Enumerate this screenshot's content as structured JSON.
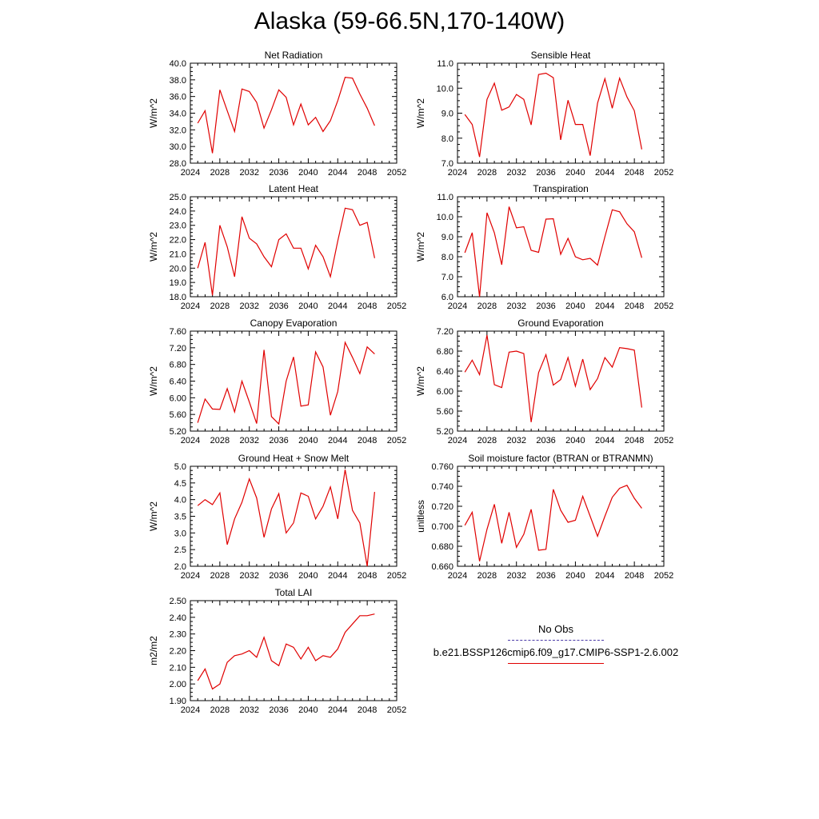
{
  "title": "Alaska (59-66.5N,170-140W)",
  "colors": {
    "model": "#e00000",
    "obs": "#4a3aa8",
    "axis": "#000000"
  },
  "legend": {
    "obs_label": "No Obs",
    "model_label": "b.e21.BSSP126cmip6.f09_g17.CMIP6-SSP1-2.6.002"
  },
  "chart_data": [
    {
      "type": "line",
      "title": "Net Radiation",
      "ylabel": "W/m^2",
      "xlim": [
        2024,
        2052
      ],
      "xticks": [
        "2024",
        "2028",
        "2032",
        "2036",
        "2040",
        "2044",
        "2048",
        "2052"
      ],
      "ylim": [
        28.0,
        40.0
      ],
      "yticks": [
        "28.0",
        "30.0",
        "32.0",
        "34.0",
        "36.0",
        "38.0",
        "40.0"
      ],
      "grid": false,
      "series": [
        {
          "x": [
            2025,
            2026,
            2027,
            2028,
            2029,
            2030,
            2031,
            2032,
            2033,
            2034,
            2035,
            2036,
            2037,
            2038,
            2039,
            2040,
            2041,
            2042,
            2043,
            2044,
            2045,
            2046,
            2047,
            2048,
            2049
          ],
          "values": [
            32.8,
            34.3,
            29.2,
            36.8,
            34.3,
            31.8,
            36.9,
            36.6,
            35.3,
            32.2,
            34.4,
            36.8,
            35.9,
            32.6,
            35.1,
            32.6,
            33.5,
            31.8,
            33.1,
            35.5,
            38.3,
            38.2,
            36.3,
            34.6,
            32.5
          ]
        }
      ]
    },
    {
      "type": "line",
      "title": "Sensible Heat",
      "ylabel": "W/m^2",
      "xlim": [
        2024,
        2052
      ],
      "xticks": [
        "2024",
        "2028",
        "2032",
        "2036",
        "2040",
        "2044",
        "2048",
        "2052"
      ],
      "ylim": [
        7.0,
        11.0
      ],
      "yticks": [
        "7.0",
        "8.0",
        "9.0",
        "10.0",
        "11.0"
      ],
      "grid": false,
      "series": [
        {
          "x": [
            2025,
            2026,
            2027,
            2028,
            2029,
            2030,
            2031,
            2032,
            2033,
            2034,
            2035,
            2036,
            2037,
            2038,
            2039,
            2040,
            2041,
            2042,
            2043,
            2044,
            2045,
            2046,
            2047,
            2048,
            2049
          ],
          "values": [
            8.95,
            8.55,
            7.25,
            9.55,
            10.2,
            9.12,
            9.25,
            9.75,
            9.55,
            8.53,
            10.55,
            10.6,
            10.42,
            7.93,
            9.52,
            8.55,
            8.55,
            7.3,
            9.4,
            10.38,
            9.2,
            10.4,
            9.65,
            9.1,
            7.55
          ]
        }
      ]
    },
    {
      "type": "line",
      "title": "Latent Heat",
      "ylabel": "W/m^2",
      "xlim": [
        2024,
        2052
      ],
      "xticks": [
        "2024",
        "2028",
        "2032",
        "2036",
        "2040",
        "2044",
        "2048",
        "2052"
      ],
      "ylim": [
        18.0,
        25.0
      ],
      "yticks": [
        "18.0",
        "19.0",
        "20.0",
        "21.0",
        "22.0",
        "23.0",
        "24.0",
        "25.0"
      ],
      "grid": false,
      "series": [
        {
          "x": [
            2025,
            2026,
            2027,
            2028,
            2029,
            2030,
            2031,
            2032,
            2033,
            2034,
            2035,
            2036,
            2037,
            2038,
            2039,
            2040,
            2041,
            2042,
            2043,
            2044,
            2045,
            2046,
            2047,
            2048,
            2049
          ],
          "values": [
            20.0,
            21.8,
            18.1,
            23.0,
            21.5,
            19.4,
            23.6,
            22.1,
            21.7,
            20.8,
            20.1,
            22.0,
            22.4,
            21.4,
            21.4,
            19.95,
            21.6,
            20.8,
            19.4,
            21.9,
            24.2,
            24.1,
            23.0,
            23.2,
            20.7
          ]
        }
      ]
    },
    {
      "type": "line",
      "title": "Transpiration",
      "ylabel": "W/m^2",
      "xlim": [
        2024,
        2052
      ],
      "xticks": [
        "2024",
        "2028",
        "2032",
        "2036",
        "2040",
        "2044",
        "2048",
        "2052"
      ],
      "ylim": [
        6.0,
        11.0
      ],
      "yticks": [
        "6.0",
        "7.0",
        "8.0",
        "9.0",
        "10.0",
        "11.0"
      ],
      "grid": false,
      "series": [
        {
          "x": [
            2025,
            2026,
            2027,
            2028,
            2029,
            2030,
            2031,
            2032,
            2033,
            2034,
            2035,
            2036,
            2037,
            2038,
            2039,
            2040,
            2041,
            2042,
            2043,
            2044,
            2045,
            2046,
            2047,
            2048,
            2049
          ],
          "values": [
            8.2,
            9.2,
            6.0,
            10.2,
            9.2,
            7.6,
            10.5,
            9.45,
            9.5,
            8.32,
            8.22,
            9.88,
            9.9,
            8.12,
            8.92,
            8.0,
            7.85,
            7.92,
            7.58,
            9.0,
            10.35,
            10.25,
            9.65,
            9.25,
            7.95
          ]
        }
      ]
    },
    {
      "type": "line",
      "title": "Canopy Evaporation",
      "ylabel": "W/m^2",
      "xlim": [
        2024,
        2052
      ],
      "xticks": [
        "2024",
        "2028",
        "2032",
        "2036",
        "2040",
        "2044",
        "2048",
        "2052"
      ],
      "ylim": [
        5.2,
        7.6
      ],
      "yticks": [
        "5.20",
        "5.60",
        "6.00",
        "6.40",
        "6.80",
        "7.20",
        "7.60"
      ],
      "grid": false,
      "series": [
        {
          "x": [
            2025,
            2026,
            2027,
            2028,
            2029,
            2030,
            2031,
            2032,
            2033,
            2034,
            2035,
            2036,
            2037,
            2038,
            2039,
            2040,
            2041,
            2042,
            2043,
            2044,
            2045,
            2046,
            2047,
            2048,
            2049
          ],
          "values": [
            5.4,
            5.97,
            5.73,
            5.72,
            6.22,
            5.66,
            6.4,
            5.9,
            5.38,
            7.15,
            5.55,
            5.37,
            6.4,
            6.98,
            5.8,
            5.83,
            7.1,
            6.74,
            5.58,
            6.15,
            7.33,
            6.97,
            6.58,
            7.22,
            7.05
          ]
        }
      ]
    },
    {
      "type": "line",
      "title": "Ground Evaporation",
      "ylabel": "W/m^2",
      "xlim": [
        2024,
        2052
      ],
      "xticks": [
        "2024",
        "2028",
        "2032",
        "2036",
        "2040",
        "2044",
        "2048",
        "2052"
      ],
      "ylim": [
        5.2,
        7.2
      ],
      "yticks": [
        "5.20",
        "5.60",
        "6.00",
        "6.40",
        "6.80",
        "7.20"
      ],
      "grid": false,
      "series": [
        {
          "x": [
            2025,
            2026,
            2027,
            2028,
            2029,
            2030,
            2031,
            2032,
            2033,
            2034,
            2035,
            2036,
            2037,
            2038,
            2039,
            2040,
            2041,
            2042,
            2043,
            2044,
            2045,
            2046,
            2047,
            2048,
            2049
          ],
          "values": [
            6.38,
            6.62,
            6.33,
            7.12,
            6.13,
            6.07,
            6.78,
            6.8,
            6.75,
            5.38,
            6.37,
            6.73,
            6.12,
            6.23,
            6.67,
            6.1,
            6.64,
            6.03,
            6.25,
            6.67,
            6.48,
            6.87,
            6.85,
            6.82,
            5.67
          ]
        }
      ]
    },
    {
      "type": "line",
      "title": "Ground Heat + Snow Melt",
      "ylabel": "W/m^2",
      "xlim": [
        2024,
        2052
      ],
      "xticks": [
        "2024",
        "2028",
        "2032",
        "2036",
        "2040",
        "2044",
        "2048",
        "2052"
      ],
      "ylim": [
        2.0,
        5.0
      ],
      "yticks": [
        "2.0",
        "2.5",
        "3.0",
        "3.5",
        "4.0",
        "4.5",
        "5.0"
      ],
      "grid": false,
      "series": [
        {
          "x": [
            2025,
            2026,
            2027,
            2028,
            2029,
            2030,
            2031,
            2032,
            2033,
            2034,
            2035,
            2036,
            2037,
            2038,
            2039,
            2040,
            2041,
            2042,
            2043,
            2044,
            2045,
            2046,
            2047,
            2048,
            2049
          ],
          "values": [
            3.82,
            4.0,
            3.85,
            4.2,
            2.65,
            3.42,
            3.92,
            4.62,
            4.05,
            2.87,
            3.72,
            4.18,
            3.0,
            3.3,
            4.2,
            4.1,
            3.42,
            3.8,
            4.38,
            3.42,
            4.9,
            3.68,
            3.3,
            2.0,
            4.23
          ]
        }
      ]
    },
    {
      "type": "line",
      "title": "Soil moisture factor (BTRAN or BTRANMN)",
      "ylabel": "unitless",
      "xlim": [
        2024,
        2052
      ],
      "xticks": [
        "2024",
        "2028",
        "2032",
        "2036",
        "2040",
        "2044",
        "2048",
        "2052"
      ],
      "ylim": [
        0.66,
        0.76
      ],
      "yticks": [
        "0.660",
        "0.680",
        "0.700",
        "0.720",
        "0.740",
        "0.760"
      ],
      "grid": false,
      "series": [
        {
          "x": [
            2025,
            2026,
            2027,
            2028,
            2029,
            2030,
            2031,
            2032,
            2033,
            2034,
            2035,
            2036,
            2037,
            2038,
            2039,
            2040,
            2041,
            2042,
            2043,
            2044,
            2045,
            2046,
            2047,
            2048,
            2049
          ],
          "values": [
            0.701,
            0.714,
            0.665,
            0.697,
            0.722,
            0.683,
            0.714,
            0.679,
            0.692,
            0.717,
            0.676,
            0.677,
            0.737,
            0.716,
            0.704,
            0.706,
            0.73,
            0.71,
            0.69,
            0.71,
            0.729,
            0.738,
            0.741,
            0.728,
            0.718
          ]
        }
      ]
    },
    {
      "type": "line",
      "title": "Total LAI",
      "ylabel": "m2/m2",
      "xlim": [
        2024,
        2052
      ],
      "xticks": [
        "2024",
        "2028",
        "2032",
        "2036",
        "2040",
        "2044",
        "2048",
        "2052"
      ],
      "ylim": [
        1.9,
        2.5
      ],
      "yticks": [
        "1.90",
        "2.00",
        "2.10",
        "2.20",
        "2.30",
        "2.40",
        "2.50"
      ],
      "grid": false,
      "series": [
        {
          "x": [
            2025,
            2026,
            2027,
            2028,
            2029,
            2030,
            2031,
            2032,
            2033,
            2034,
            2035,
            2036,
            2037,
            2038,
            2039,
            2040,
            2041,
            2042,
            2043,
            2044,
            2045,
            2046,
            2047,
            2048,
            2049
          ],
          "values": [
            2.02,
            2.09,
            1.97,
            2.0,
            2.13,
            2.17,
            2.18,
            2.2,
            2.16,
            2.28,
            2.14,
            2.11,
            2.24,
            2.22,
            2.15,
            2.22,
            2.14,
            2.17,
            2.16,
            2.21,
            2.31,
            2.36,
            2.41,
            2.41,
            2.42
          ]
        }
      ]
    }
  ]
}
